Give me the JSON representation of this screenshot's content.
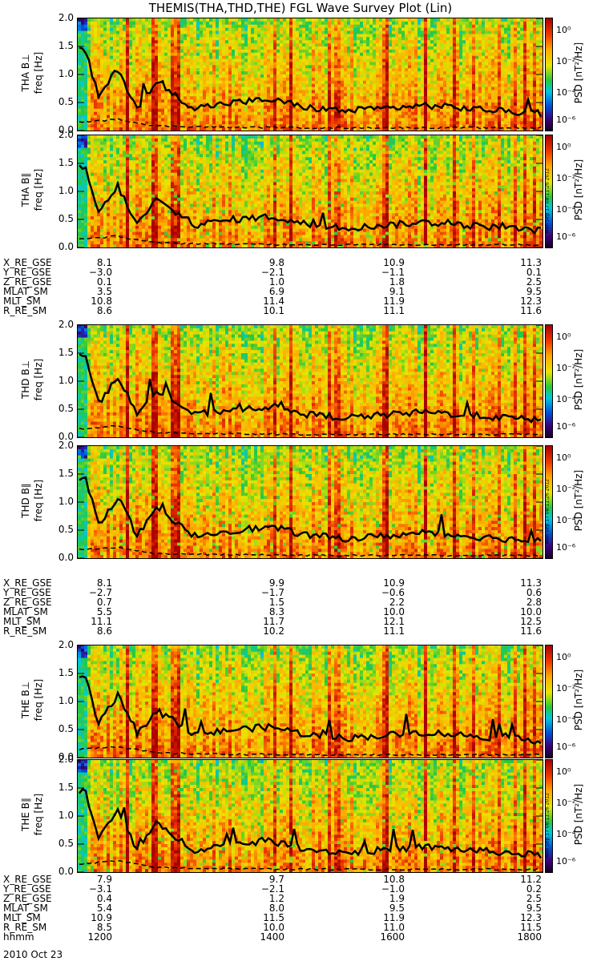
{
  "title": "THEMIS(THA,THD,THE) FGL Wave Survey Plot (Lin)",
  "colorbar": {
    "label": "PSD [nT²/Hz]",
    "ticks": [
      "10⁰",
      "10⁻²",
      "10⁻⁴",
      "10⁻⁶"
    ]
  },
  "stamp": "Mon Sep 17 08:11:26 2012",
  "freq_label": "freq [Hz]",
  "yticks": [
    "2.0",
    "1.5",
    "1.0",
    "0.5",
    "0.0"
  ],
  "probes": [
    {
      "name": "THA",
      "panels": [
        {
          "label": "THA B⊥"
        },
        {
          "label": "THA B∥"
        }
      ],
      "ephemeris": {
        "rows": [
          {
            "label": "X_RE_GSE",
            "values": [
              "8.1",
              "9.8",
              "10.9",
              "11.3"
            ]
          },
          {
            "label": "Y_RE_GSE",
            "values": [
              "−3.0",
              "−2.1",
              "−1.1",
              "0.1"
            ]
          },
          {
            "label": "Z_RE_GSE",
            "values": [
              "0.1",
              "1.0",
              "1.8",
              "2.5"
            ]
          },
          {
            "label": "MLAT_SM",
            "values": [
              "3.5",
              "6.9",
              "9.1",
              "9.5"
            ]
          },
          {
            "label": "MLT_SM",
            "values": [
              "10.8",
              "11.4",
              "11.9",
              "12.3"
            ]
          },
          {
            "label": "R_RE_SM",
            "values": [
              "8.6",
              "10.1",
              "11.1",
              "11.6"
            ]
          }
        ]
      }
    },
    {
      "name": "THD",
      "panels": [
        {
          "label": "THD B⊥"
        },
        {
          "label": "THD B∥"
        }
      ],
      "ephemeris": {
        "rows": [
          {
            "label": "X_RE_GSE",
            "values": [
              "8.1",
              "9.9",
              "10.9",
              "11.3"
            ]
          },
          {
            "label": "Y_RE_GSE",
            "values": [
              "−2.7",
              "−1.7",
              "−0.6",
              "0.6"
            ]
          },
          {
            "label": "Z_RE_GSE",
            "values": [
              "0.7",
              "1.5",
              "2.2",
              "2.8"
            ]
          },
          {
            "label": "MLAT_SM",
            "values": [
              "5.5",
              "8.3",
              "10.0",
              "10.0"
            ]
          },
          {
            "label": "MLT_SM",
            "values": [
              "11.1",
              "11.7",
              "12.1",
              "12.5"
            ]
          },
          {
            "label": "R_RE_SM",
            "values": [
              "8.6",
              "10.2",
              "11.1",
              "11.6"
            ]
          }
        ]
      }
    },
    {
      "name": "THE",
      "panels": [
        {
          "label": "THE B⊥"
        },
        {
          "label": "THE B∥"
        }
      ],
      "ephemeris": {
        "rows": [
          {
            "label": "X_RE_GSE",
            "values": [
              "7.9",
              "9.7",
              "10.8",
              "11.2"
            ]
          },
          {
            "label": "Y_RE_GSE",
            "values": [
              "−3.1",
              "−2.1",
              "−1.0",
              "0.2"
            ]
          },
          {
            "label": "Z_RE_GSE",
            "values": [
              "0.4",
              "1.2",
              "1.9",
              "2.5"
            ]
          },
          {
            "label": "MLAT_SM",
            "values": [
              "5.4",
              "8.0",
              "9.5",
              "9.5"
            ]
          },
          {
            "label": "MLT_SM",
            "values": [
              "10.9",
              "11.5",
              "11.9",
              "12.3"
            ]
          },
          {
            "label": "R_RE_SM",
            "values": [
              "8.5",
              "10.0",
              "11.0",
              "11.5"
            ]
          },
          {
            "label": "hhmm",
            "values": [
              "1200",
              "1400",
              "1600",
              "1800"
            ]
          }
        ]
      }
    }
  ],
  "date": "2010 Oct 23",
  "chart_data": {
    "type": "heatmap",
    "title": "THEMIS(THA,THD,THE) FGL Wave Survey Plot (Lin)",
    "ylabel": "freq [Hz]",
    "ylim": [
      0,
      2
    ],
    "xlim": [
      "1200",
      "1800"
    ],
    "xlabel": "hhmm",
    "colorbar_label": "PSD [nT²/Hz]",
    "colorbar_range": [
      "10⁻⁶",
      "10¹"
    ],
    "colorscale": "log",
    "panels": [
      "THA B⊥",
      "THA B∥",
      "THD B⊥",
      "THD B∥",
      "THE B⊥",
      "THE B∥"
    ],
    "overlay_lines": [
      {
        "style": "solid",
        "x_hhmm": [
          "1200",
          "1205",
          "1215",
          "1230",
          "1245",
          "1300",
          "1330",
          "1400",
          "1430",
          "1500",
          "1530",
          "1600",
          "1630",
          "1700",
          "1730",
          "1800"
        ],
        "y_hz": [
          1.45,
          1.4,
          0.6,
          1.1,
          0.4,
          0.85,
          0.4,
          0.5,
          0.55,
          0.4,
          0.35,
          0.4,
          0.45,
          0.4,
          0.35,
          0.3
        ]
      },
      {
        "style": "dashed",
        "x_hhmm": [
          "1200",
          "1230",
          "1300",
          "1400",
          "1500",
          "1600",
          "1700",
          "1800"
        ],
        "y_hz": [
          0.15,
          0.2,
          0.08,
          0.06,
          0.05,
          0.05,
          0.05,
          0.05
        ]
      }
    ]
  }
}
